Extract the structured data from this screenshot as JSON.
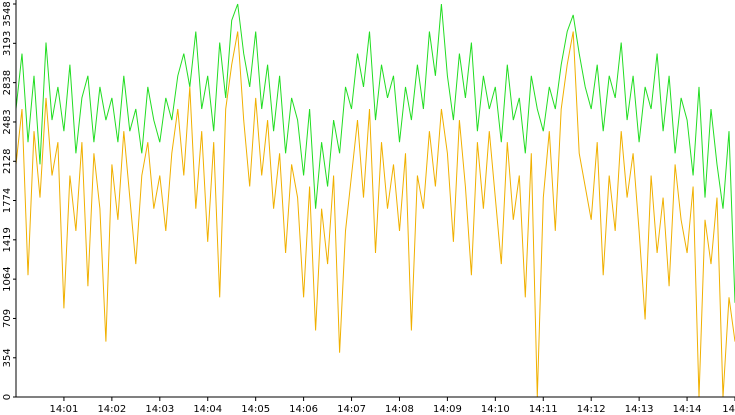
{
  "chart_data": {
    "type": "line",
    "categories": [
      null,
      null,
      null,
      null,
      null,
      null,
      null,
      null,
      "14:01",
      null,
      null,
      null,
      null,
      null,
      null,
      null,
      "14:02",
      null,
      null,
      null,
      null,
      null,
      null,
      null,
      "14:03",
      null,
      null,
      null,
      null,
      null,
      null,
      null,
      "14:04",
      null,
      null,
      null,
      null,
      null,
      null,
      null,
      "14:05",
      null,
      null,
      null,
      null,
      null,
      null,
      null,
      "14:06",
      null,
      null,
      null,
      null,
      null,
      null,
      null,
      "14:07",
      null,
      null,
      null,
      null,
      null,
      null,
      null,
      "14:08",
      null,
      null,
      null,
      null,
      null,
      null,
      null,
      "14:09",
      null,
      null,
      null,
      null,
      null,
      null,
      null,
      "14:10",
      null,
      null,
      null,
      null,
      null,
      null,
      null,
      "14:11",
      null,
      null,
      null,
      null,
      null,
      null,
      null,
      "14:12",
      null,
      null,
      null,
      null,
      null,
      null,
      null,
      "14:13",
      null,
      null,
      null,
      null,
      null,
      null,
      null,
      "14:14",
      null,
      null,
      null,
      null,
      null,
      null,
      null,
      "14"
    ],
    "series": [
      {
        "color": "#22dd22",
        "values": [
          2600,
          3100,
          2300,
          2900,
          2100,
          3200,
          2500,
          2800,
          2400,
          3000,
          2200,
          2700,
          2900,
          2300,
          2800,
          2500,
          2700,
          2300,
          2900,
          2400,
          2600,
          2200,
          2800,
          2500,
          2300,
          2700,
          2500,
          2900,
          3100,
          2800,
          3300,
          2600,
          2900,
          2400,
          3200,
          2700,
          3400,
          3548,
          3100,
          2800,
          3300,
          2600,
          3000,
          2400,
          2900,
          2200,
          2700,
          2500,
          2000,
          2600,
          1700,
          2300,
          1900,
          2500,
          2200,
          2800,
          2600,
          3100,
          2800,
          3300,
          2500,
          3000,
          2700,
          2900,
          2300,
          2800,
          2500,
          3000,
          2600,
          3300,
          2900,
          3548,
          2900,
          2500,
          3100,
          2700,
          3200,
          2400,
          2900,
          2600,
          2800,
          2300,
          3000,
          2500,
          2700,
          2200,
          2900,
          2600,
          2400,
          2800,
          2600,
          3000,
          3300,
          3450,
          3100,
          2800,
          2600,
          3000,
          2400,
          2900,
          2700,
          3200,
          2500,
          2900,
          2300,
          2800,
          2600,
          3100,
          2400,
          2900,
          2200,
          2700,
          2500,
          2000,
          2800,
          1800,
          2600,
          2100,
          1700,
          2400,
          850
        ]
      },
      {
        "color": "#f0b000",
        "values": [
          2100,
          2600,
          1100,
          2400,
          1800,
          2700,
          2000,
          2300,
          800,
          2000,
          1500,
          2300,
          1000,
          2200,
          1700,
          500,
          2100,
          1600,
          2400,
          1800,
          1200,
          2000,
          2300,
          1700,
          2000,
          1500,
          2200,
          2600,
          2000,
          2800,
          1700,
          2400,
          1400,
          2300,
          900,
          2600,
          3000,
          3300,
          2500,
          1900,
          2700,
          2000,
          2500,
          1700,
          2200,
          1300,
          2100,
          1800,
          900,
          1900,
          600,
          1700,
          1200,
          2000,
          400,
          1500,
          2000,
          2500,
          1800,
          2600,
          1300,
          2300,
          1700,
          2100,
          1500,
          2200,
          600,
          2000,
          1700,
          2400,
          1900,
          2600,
          2200,
          1400,
          2500,
          1900,
          1100,
          2300,
          1700,
          2400,
          1800,
          1200,
          2300,
          1600,
          2000,
          900,
          2200,
          0,
          1800,
          2400,
          1500,
          2600,
          3000,
          3300,
          2200,
          1900,
          1600,
          2300,
          1100,
          2000,
          1500,
          2400,
          1800,
          2200,
          1500,
          700,
          2000,
          1300,
          1800,
          1000,
          2100,
          1600,
          1300,
          1900,
          0,
          1600,
          1200,
          1800,
          0,
          900,
          500
        ]
      }
    ],
    "ylim": [
      0,
      3548
    ],
    "yticks": [
      0,
      354,
      709,
      1064,
      1419,
      1774,
      2128,
      2483,
      2838,
      3193,
      3548
    ]
  }
}
